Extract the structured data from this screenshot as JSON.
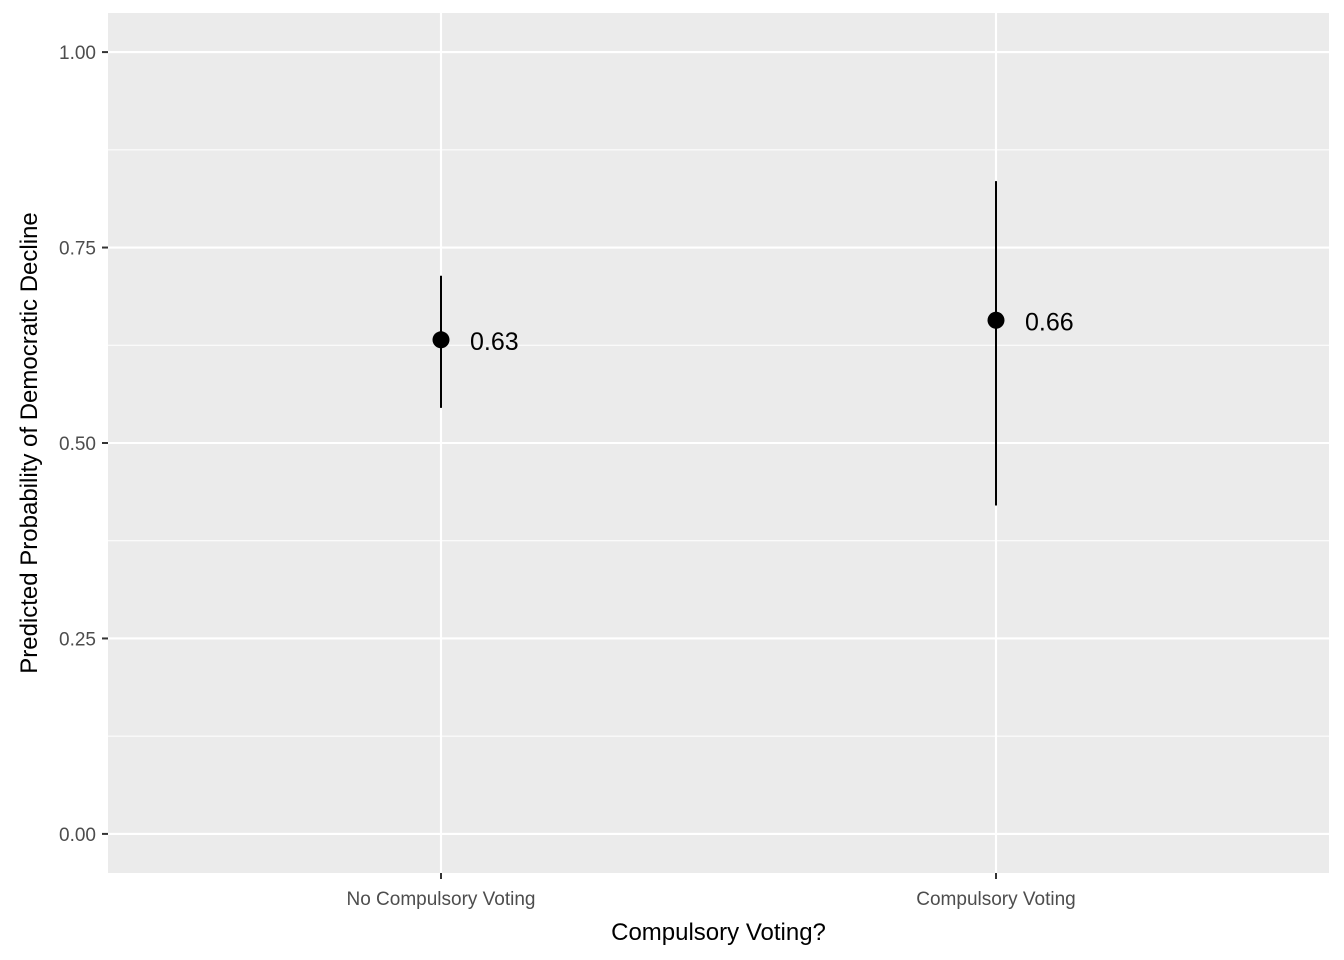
{
  "chart_data": {
    "type": "scatter",
    "subtype": "pointrange",
    "title": "",
    "xlabel": "Compulsory Voting?",
    "ylabel": "Predicted Probability of Democratic Decline",
    "categories": [
      "No Compulsory Voting",
      "Compulsory Voting"
    ],
    "values": [
      0.632,
      0.657
    ],
    "lower": [
      0.545,
      0.42
    ],
    "upper": [
      0.714,
      0.835
    ],
    "labels": [
      "0.63",
      "0.66"
    ],
    "ylim": [
      -0.05,
      1.05
    ],
    "yticks": [
      0.0,
      0.25,
      0.5,
      0.75,
      1.0
    ],
    "ytick_labels": [
      "0.00",
      "0.25",
      "0.50",
      "0.75",
      "1.00"
    ],
    "grid": true,
    "legend": "none",
    "colors": {
      "panel_background": "#ebebeb",
      "grid": "#ffffff",
      "point": "#000000",
      "tick_text": "#4d4d4d",
      "tick_mark": "#333333"
    }
  }
}
